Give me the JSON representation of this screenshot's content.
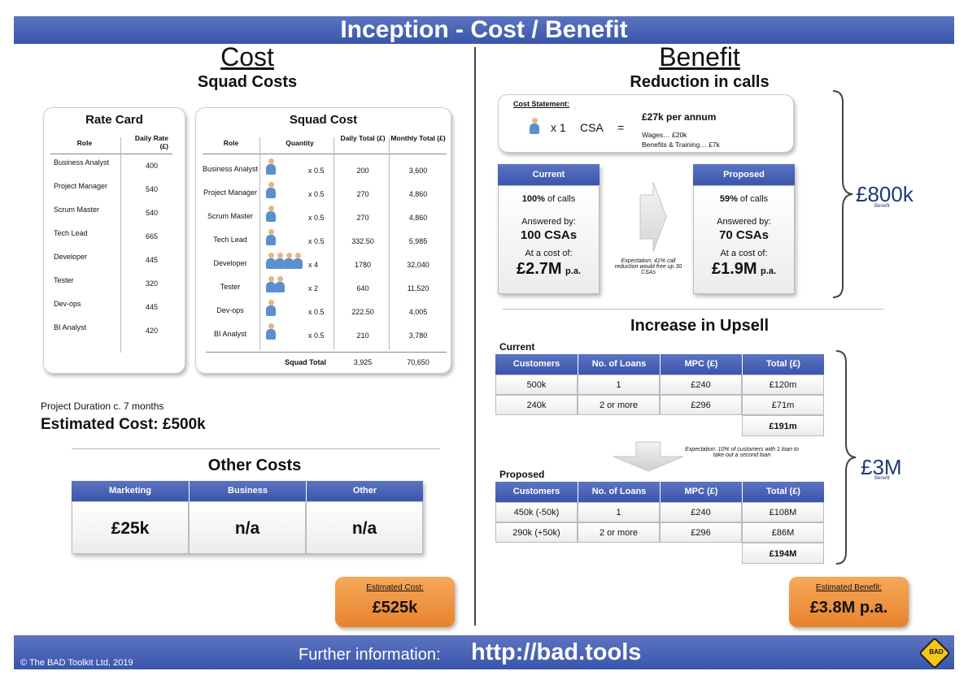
{
  "header": {
    "title": "Inception - Cost / Benefit"
  },
  "cost": {
    "title": "Cost",
    "subtitle": "Squad Costs",
    "rate_card": {
      "title": "Rate Card",
      "col_role": "Role",
      "col_rate": "Daily Rate (£)",
      "rows": [
        {
          "role": "Business Analyst",
          "rate": "400"
        },
        {
          "role": "Project Manager",
          "rate": "540"
        },
        {
          "role": "Scrum Master",
          "rate": "540"
        },
        {
          "role": "Tech Lead",
          "rate": "665"
        },
        {
          "role": "Developer",
          "rate": "445"
        },
        {
          "role": "Tester",
          "rate": "320"
        },
        {
          "role": "Dev-ops",
          "rate": "445"
        },
        {
          "role": "BI Analyst",
          "rate": "420"
        }
      ]
    },
    "squad_cost": {
      "title": "Squad Cost",
      "col_role": "Role",
      "col_qty": "Quantity",
      "col_daily": "Daily Total (£)",
      "col_monthly": "Monthly Total (£)",
      "rows": [
        {
          "role": "Business Analyst",
          "people": 1,
          "qty": "x 0.5",
          "daily": "200",
          "monthly": "3,600"
        },
        {
          "role": "Project Manager",
          "people": 1,
          "qty": "x 0.5",
          "daily": "270",
          "monthly": "4,860"
        },
        {
          "role": "Scrum Master",
          "people": 1,
          "qty": "x 0.5",
          "daily": "270",
          "monthly": "4,860"
        },
        {
          "role": "Tech Lead",
          "people": 1,
          "qty": "x 0.5",
          "daily": "332.50",
          "monthly": "5,985"
        },
        {
          "role": "Developer",
          "people": 4,
          "qty": "x 4",
          "daily": "1780",
          "monthly": "32,040"
        },
        {
          "role": "Tester",
          "people": 2,
          "qty": "x 2",
          "daily": "640",
          "monthly": "11,520"
        },
        {
          "role": "Dev-ops",
          "people": 1,
          "qty": "x 0.5",
          "daily": "222.50",
          "monthly": "4,005"
        },
        {
          "role": "BI Analyst",
          "people": 1,
          "qty": "x 0.5",
          "daily": "210",
          "monthly": "3,780"
        }
      ],
      "total_label": "Squad Total",
      "total_daily": "3,925",
      "total_monthly": "70,650"
    },
    "duration": "Project Duration  c. 7 months",
    "estimated_cost": "Estimated Cost: £500k",
    "other_costs": {
      "title": "Other Costs",
      "headers": [
        "Marketing",
        "Business",
        "Other"
      ],
      "values": [
        "£25k",
        "n/a",
        "n/a"
      ]
    },
    "total_box": {
      "label": "Estimated Cost:",
      "value": "£525k"
    }
  },
  "benefit": {
    "title": "Benefit",
    "subtitle": "Reduction in calls",
    "statement": {
      "label": "Cost Statement:",
      "qty": "x 1",
      "role": "CSA",
      "equals": "=",
      "amount": "£27k per annum",
      "wages": "Wages… £20k",
      "benefits": "Benefits & Training… £7k"
    },
    "current": {
      "header": "Current",
      "pct": "100%",
      "pct_suffix": " of calls",
      "answered": "Answered by:",
      "csas": "100 CSAs",
      "cost_label": "At a cost of:",
      "cost": "£2.7M",
      "pa": "p.a."
    },
    "proposed": {
      "header": "Proposed",
      "pct": "59%",
      "pct_suffix": " of calls",
      "answered": "Answered by:",
      "csas": "70 CSAs",
      "cost_label": "At a cost of:",
      "cost": "£1.9M",
      "pa": "p.a."
    },
    "expectation_calls": "Expectation: 41% call reduction would free up  30 CSAs",
    "calls_benefit": "£800k",
    "calls_benefit_label": "Benefit",
    "upsell_title": "Increase in Upsell",
    "upsell_current_label": "Current",
    "upsell_proposed_label": "Proposed",
    "upsell_headers": [
      "Customers",
      "No. of Loans",
      "MPC (£)",
      "Total (£)"
    ],
    "upsell_current_rows": [
      [
        "500k",
        "1",
        "£240",
        "£120m"
      ],
      [
        "240k",
        "2 or more",
        "£296",
        "£71m"
      ]
    ],
    "upsell_current_total": "£191m",
    "upsell_proposed_rows": [
      [
        "450k   (-50k)",
        "1",
        "£240",
        "£108M"
      ],
      [
        "290k   (+50k)",
        "2 or more",
        "£296",
        "£86M"
      ]
    ],
    "upsell_proposed_total": "£194M",
    "expectation_upsell": "Expectation: 10% of customers with 1 loan to take out a second loan",
    "upsell_benefit": "£3M",
    "upsell_benefit_label": "Benefit",
    "total_box": {
      "label": "Estimated Benefit:",
      "value": "£3.8M p.a."
    }
  },
  "footer": {
    "copyright": "© The BAD Toolkit Ltd, 2019",
    "further": "Further information:",
    "url": "http://bad.tools",
    "logo": "BAD"
  },
  "colors": {
    "banner": "#3a55ad",
    "accent_orange": "#e8822c",
    "benefit_text": "#1f3a78"
  }
}
